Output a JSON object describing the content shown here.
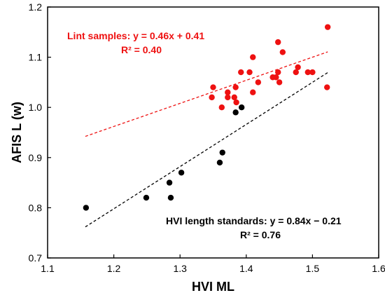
{
  "chart_data": {
    "type": "scatter",
    "xlabel": "HVI ML",
    "ylabel": "AFIS L (w)",
    "xlim": [
      1.1,
      1.6
    ],
    "ylim": [
      0.7,
      1.2
    ],
    "xticks": [
      1.1,
      1.2,
      1.3,
      1.4,
      1.5,
      1.6
    ],
    "yticks": [
      0.7,
      0.8,
      0.9,
      1.0,
      1.1,
      1.2
    ],
    "xtick_labels": [
      "1.1",
      "1.2",
      "1.3",
      "1.4",
      "1.5",
      "1.6"
    ],
    "ytick_labels": [
      "0.7",
      "0.8",
      "0.9",
      "1.0",
      "1.1",
      "1.2"
    ],
    "grid": false,
    "series": [
      {
        "name": "Lint samples",
        "color": "#ee1111",
        "points": [
          [
            1.348,
            1.02
          ],
          [
            1.35,
            1.04
          ],
          [
            1.363,
            1.0
          ],
          [
            1.372,
            1.03
          ],
          [
            1.372,
            1.02
          ],
          [
            1.382,
            1.02
          ],
          [
            1.384,
            1.04
          ],
          [
            1.385,
            1.01
          ],
          [
            1.392,
            1.07
          ],
          [
            1.405,
            1.07
          ],
          [
            1.41,
            1.1
          ],
          [
            1.41,
            1.03
          ],
          [
            1.418,
            1.05
          ],
          [
            1.44,
            1.06
          ],
          [
            1.445,
            1.06
          ],
          [
            1.448,
            1.13
          ],
          [
            1.448,
            1.07
          ],
          [
            1.45,
            1.05
          ],
          [
            1.455,
            1.11
          ],
          [
            1.475,
            1.07
          ],
          [
            1.478,
            1.08
          ],
          [
            1.493,
            1.07
          ],
          [
            1.5,
            1.07
          ],
          [
            1.522,
            1.04
          ],
          [
            1.523,
            1.16
          ]
        ],
        "trendline": {
          "slope": 0.46,
          "intercept": 0.41,
          "x_range": [
            1.157,
            1.523
          ],
          "style": "dashed"
        }
      },
      {
        "name": "HVI length standards",
        "color": "#000000",
        "points": [
          [
            1.158,
            0.8
          ],
          [
            1.249,
            0.82
          ],
          [
            1.284,
            0.85
          ],
          [
            1.286,
            0.82
          ],
          [
            1.302,
            0.87
          ],
          [
            1.36,
            0.89
          ],
          [
            1.364,
            0.91
          ],
          [
            1.384,
            0.99
          ],
          [
            1.393,
            1.0
          ]
        ],
        "trendline": {
          "slope": 0.84,
          "intercept": -0.21,
          "x_range": [
            1.157,
            1.523
          ],
          "style": "dashed"
        }
      }
    ],
    "annotations": [
      {
        "series": "Lint samples",
        "equation": "Lint samples: y = 0.46x + 0.41",
        "r2": "R² = 0.40",
        "color": "#ee1111"
      },
      {
        "series": "HVI length standards",
        "equation": "HVI length standards: y = 0.84x − 0.21",
        "r2": "R² = 0.76",
        "color": "#000000"
      }
    ]
  }
}
